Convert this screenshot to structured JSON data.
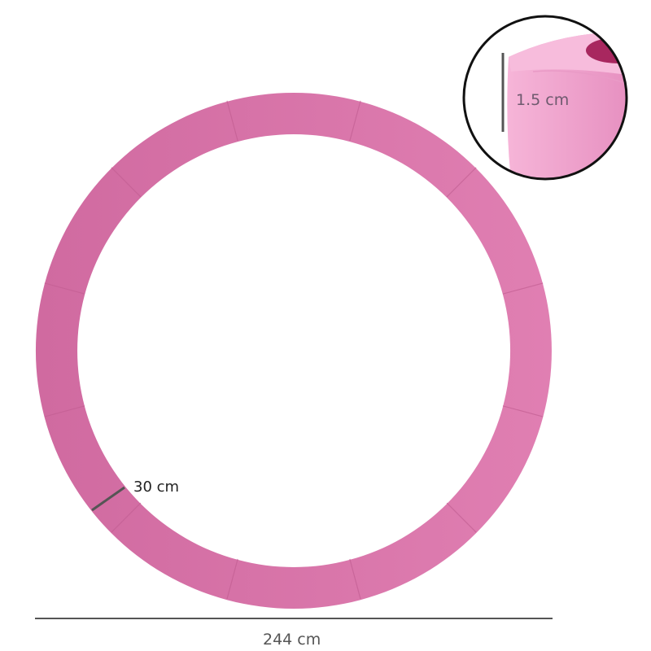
{
  "dimensions": {
    "diameter_label": "244 cm",
    "width_label": "30 cm",
    "thickness_label": "1.5 cm"
  },
  "colors": {
    "ring": "#d66ea3",
    "ring_light": "#df86b4",
    "inset_pad": "#f2a6cf",
    "inset_inner": "#a8275f",
    "dimension_line": "#555555"
  }
}
